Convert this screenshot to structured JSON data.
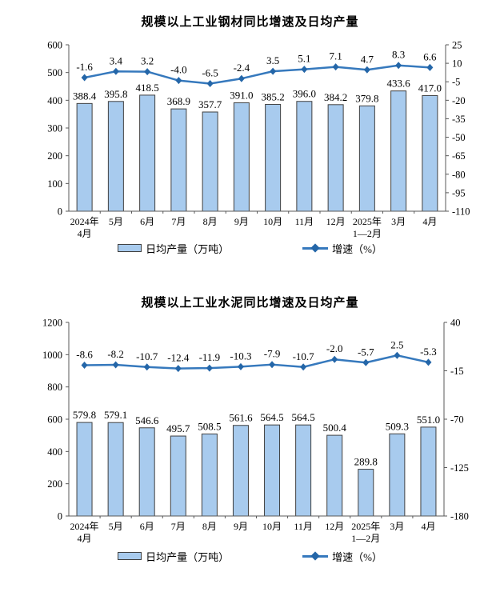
{
  "colors": {
    "bar_fill": "#A8CBEE",
    "bar_border": "#404040",
    "line": "#3679BD",
    "marker": "#2466A8",
    "axis": "#595959",
    "text": "#000000"
  },
  "chart_data": [
    {
      "type": "bar+line combo",
      "title": "规模以上工业钢材同比增速及日均产量",
      "categories": [
        [
          "2024年",
          "4月"
        ],
        [
          "5月"
        ],
        [
          "6月"
        ],
        [
          "7月"
        ],
        [
          "8月"
        ],
        [
          "9月"
        ],
        [
          "10月"
        ],
        [
          "11月"
        ],
        [
          "12月"
        ],
        [
          "2025年",
          "1—2月"
        ],
        [
          "3月"
        ],
        [
          "4月"
        ]
      ],
      "bar_series": {
        "name": "日均产量（万吨）",
        "values": [
          "388.4",
          "395.8",
          "418.5",
          "368.9",
          "357.7",
          "391.0",
          "385.2",
          "396.0",
          "384.2",
          "379.8",
          "433.6",
          "417.0"
        ]
      },
      "line_series": {
        "name": "增速（%）",
        "values": [
          "-1.6",
          "3.4",
          "3.2",
          "-4.0",
          "-6.5",
          "-2.4",
          "3.5",
          "5.1",
          "7.1",
          "4.7",
          "8.3",
          "6.6"
        ]
      },
      "left_axis": {
        "min": 0,
        "max": 600,
        "ticks": [
          600,
          500,
          400,
          300,
          200,
          100,
          0
        ]
      },
      "right_axis": {
        "min": -110,
        "max": 25,
        "ticks": [
          25,
          10,
          -5,
          -20,
          -35,
          -50,
          -65,
          -80,
          -95,
          -110
        ]
      },
      "grid": "off",
      "legend_position": "bottom"
    },
    {
      "type": "bar+line combo",
      "title": "规模以上工业水泥同比增速及日均产量",
      "categories": [
        [
          "2024年",
          "4月"
        ],
        [
          "5月"
        ],
        [
          "6月"
        ],
        [
          "7月"
        ],
        [
          "8月"
        ],
        [
          "9月"
        ],
        [
          "10月"
        ],
        [
          "11月"
        ],
        [
          "12月"
        ],
        [
          "2025年",
          "1—2月"
        ],
        [
          "3月"
        ],
        [
          "4月"
        ]
      ],
      "bar_series": {
        "name": "日均产量（万吨）",
        "values": [
          "579.8",
          "579.1",
          "546.6",
          "495.7",
          "508.5",
          "561.6",
          "564.5",
          "564.5",
          "500.4",
          "289.8",
          "509.3",
          "551.0"
        ]
      },
      "line_series": {
        "name": "增速（%）",
        "values": [
          "-8.6",
          "-8.2",
          "-10.7",
          "-12.4",
          "-11.9",
          "-10.3",
          "-7.9",
          "-10.7",
          "-2.0",
          "-5.7",
          "2.5",
          "-5.3"
        ]
      },
      "left_axis": {
        "min": 0,
        "max": 1200,
        "ticks": [
          1200,
          1000,
          800,
          600,
          400,
          200,
          0
        ]
      },
      "right_axis": {
        "min": -180,
        "max": 40,
        "ticks": [
          40,
          -15,
          -70,
          -125,
          -180
        ]
      },
      "grid": "off",
      "legend_position": "bottom"
    }
  ]
}
